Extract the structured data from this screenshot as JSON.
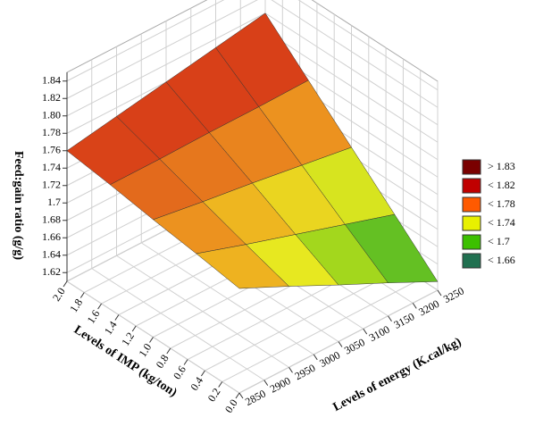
{
  "chart_data": {
    "type": "surface3d",
    "zlabel": "Feed:gain ratio (g/g)",
    "ylabel": "Levels of IMP (kg/ton)",
    "xlabel": "Levels of energy (K.cal/kg)",
    "x": [
      2850,
      2950,
      3050,
      3150,
      3250
    ],
    "y": [
      0,
      0.5,
      1,
      1.5,
      2
    ],
    "z": [
      [
        1.73,
        1.738,
        1.745,
        1.753,
        1.76
      ],
      [
        1.703,
        1.719,
        1.736,
        1.753,
        1.77
      ],
      [
        1.675,
        1.701,
        1.728,
        1.754,
        1.78
      ],
      [
        1.648,
        1.683,
        1.719,
        1.754,
        1.79
      ],
      [
        1.62,
        1.665,
        1.71,
        1.755,
        1.8
      ]
    ],
    "xlim": [
      2850,
      3250
    ],
    "xticks": [
      2850,
      2900,
      2950,
      3000,
      3050,
      3100,
      3150,
      3200,
      3250
    ],
    "ylim": [
      0,
      2
    ],
    "yticks": [
      {
        "value": 0,
        "label": "0.0"
      },
      0.2,
      0.4,
      0.6,
      0.8,
      {
        "value": 1,
        "label": "1.0"
      },
      1.2,
      1.4,
      1.6,
      1.8,
      {
        "value": 2,
        "label": "2.0"
      }
    ],
    "zlim": [
      1.61,
      1.85
    ],
    "zticks": [
      1.62,
      1.64,
      1.66,
      1.68,
      1.7,
      1.72,
      1.74,
      1.76,
      1.78,
      {
        "value": 1.8,
        "label": "1.80"
      },
      1.82,
      1.84
    ],
    "colormap": [
      "#1e7a3a",
      "#3fb02a",
      "#8fd21c",
      "#e8e820",
      "#f0a020",
      "#d84018"
    ],
    "grid": true,
    "legend": [
      {
        "label": "> 1.83",
        "color": "#7a0000"
      },
      {
        "label": "< 1.82",
        "color": "#c00000"
      },
      {
        "label": "< 1.78",
        "color": "#ff5a00"
      },
      {
        "label": "< 1.74",
        "color": "#e8f000"
      },
      {
        "label": "< 1.7",
        "color": "#3cc000"
      },
      {
        "label": "< 1.66",
        "color": "#207050"
      }
    ]
  }
}
